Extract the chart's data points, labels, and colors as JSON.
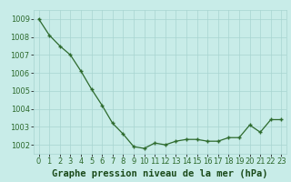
{
  "x": [
    0,
    1,
    2,
    3,
    4,
    5,
    6,
    7,
    8,
    9,
    10,
    11,
    12,
    13,
    14,
    15,
    16,
    17,
    18,
    19,
    20,
    21,
    22,
    23
  ],
  "y": [
    1009.0,
    1008.1,
    1007.5,
    1007.0,
    1006.1,
    1005.1,
    1004.2,
    1003.2,
    1002.6,
    1001.9,
    1001.8,
    1002.1,
    1002.0,
    1002.2,
    1002.3,
    1002.3,
    1002.2,
    1002.2,
    1002.4,
    1002.4,
    1003.1,
    1002.7,
    1003.4,
    1003.4
  ],
  "line_color": "#2d6a2d",
  "marker_color": "#2d6a2d",
  "bg_color": "#c8ece8",
  "grid_color": "#a8d4d0",
  "xlabel": "Graphe pression niveau de la mer (hPa)",
  "xlabel_color": "#1a4a1a",
  "tick_color": "#2d6a2d",
  "ylim": [
    1001.5,
    1009.5
  ],
  "yticks": [
    1002,
    1003,
    1004,
    1005,
    1006,
    1007,
    1008,
    1009
  ],
  "xticks": [
    0,
    1,
    2,
    3,
    4,
    5,
    6,
    7,
    8,
    9,
    10,
    11,
    12,
    13,
    14,
    15,
    16,
    17,
    18,
    19,
    20,
    21,
    22,
    23
  ],
  "xtick_labels": [
    "0",
    "1",
    "2",
    "3",
    "4",
    "5",
    "6",
    "7",
    "8",
    "9",
    "10",
    "11",
    "12",
    "13",
    "14",
    "15",
    "16",
    "17",
    "18",
    "19",
    "20",
    "21",
    "22",
    "23"
  ],
  "tick_fontsize": 6,
  "xlabel_fontsize": 7.5
}
